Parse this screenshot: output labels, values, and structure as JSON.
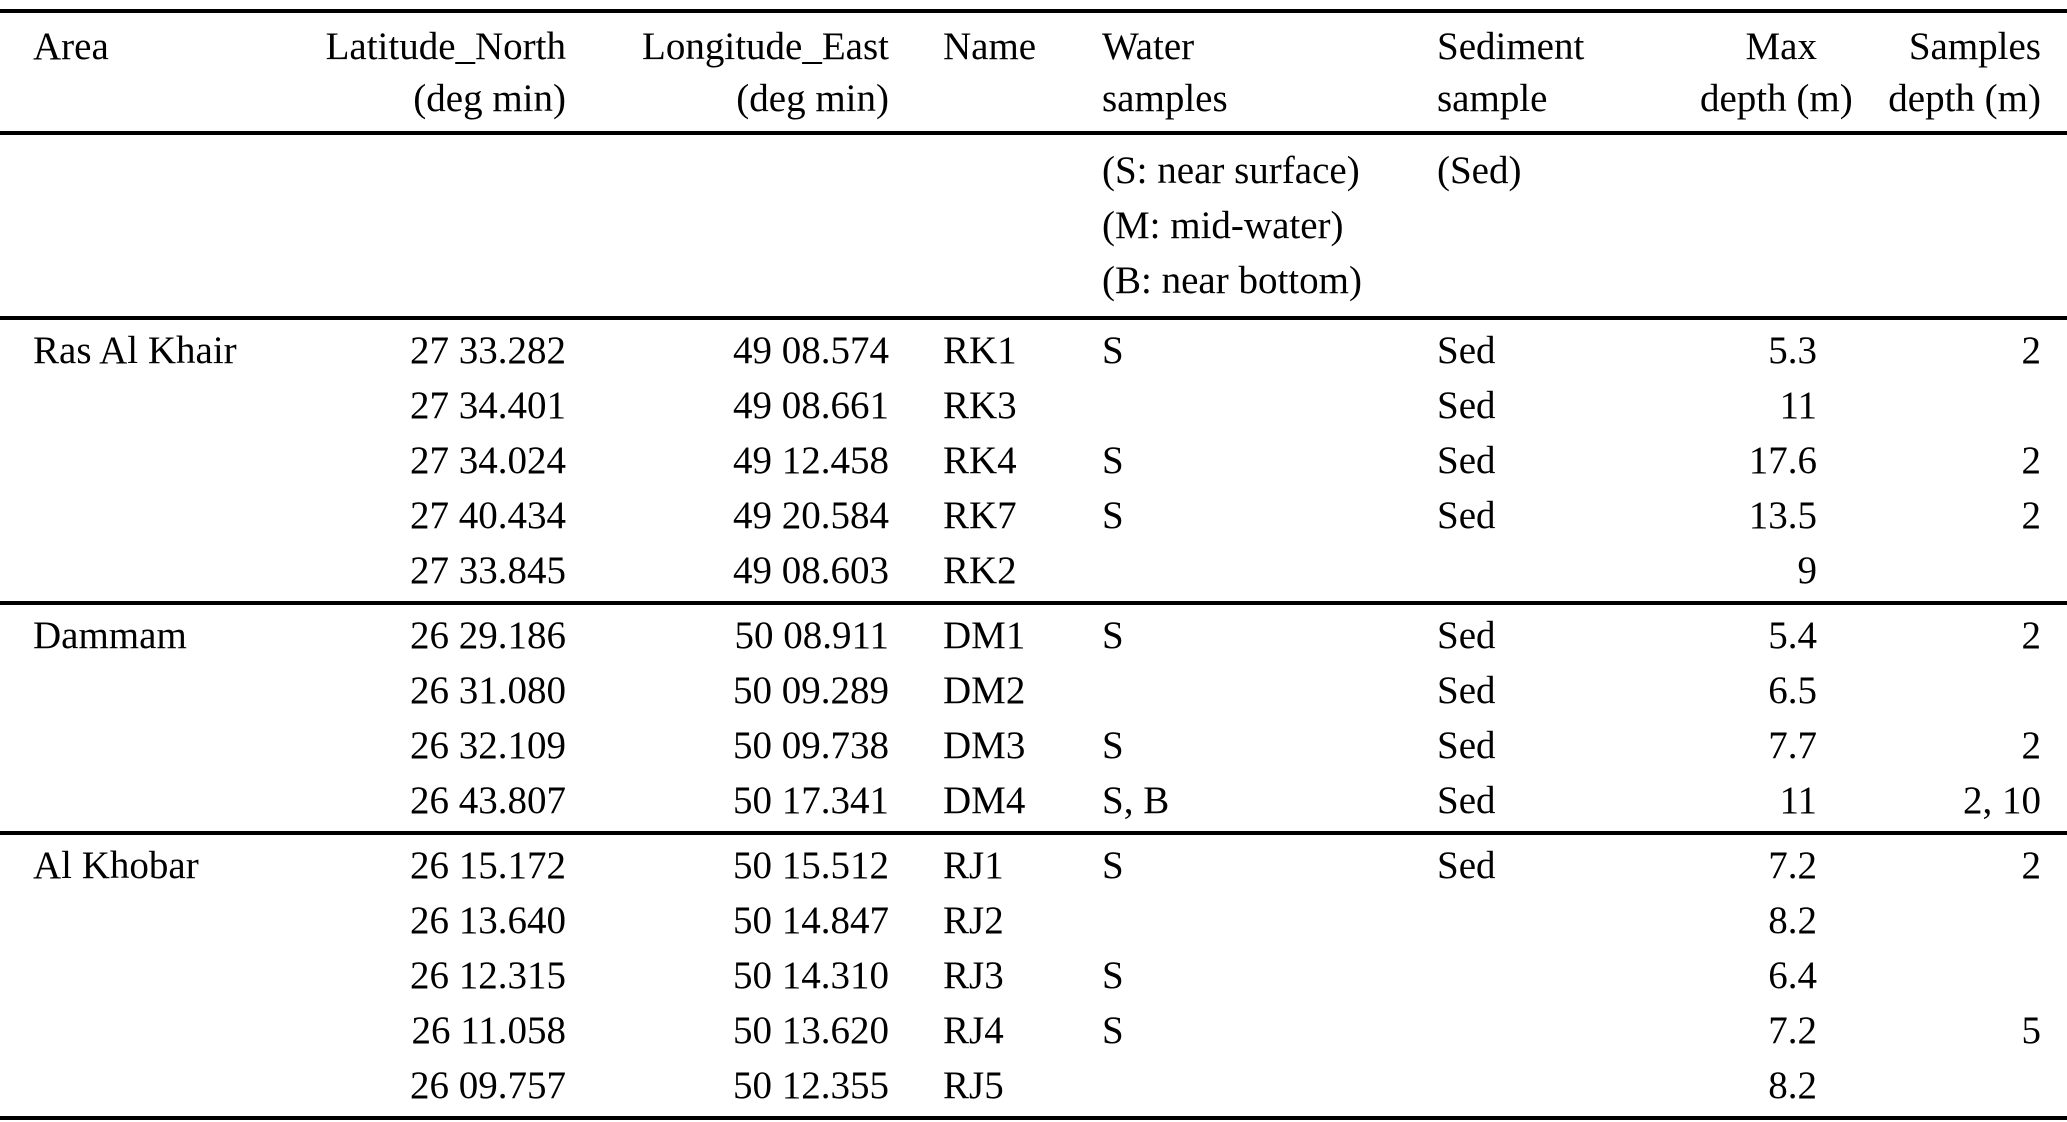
{
  "page": {
    "background": "#ffffff",
    "text_color": "#000000",
    "rule_color": "#000000"
  },
  "table": {
    "columns": [
      {
        "line1": "Area",
        "line2": ""
      },
      {
        "line1": "Latitude_North",
        "line2": "(deg min)"
      },
      {
        "line1": "Longitude_East",
        "line2": "(deg min)"
      },
      {
        "line1": "Name",
        "line2": ""
      },
      {
        "line1": "Water",
        "line2": "samples"
      },
      {
        "line1": "Sediment",
        "line2": "sample"
      },
      {
        "line1": "Max",
        "line2": "depth (m)"
      },
      {
        "line1": "Samples",
        "line2": "depth (m)"
      }
    ],
    "legend": {
      "water": [
        "(S: near surface)",
        "(M: mid-water)",
        "(B: near bottom)"
      ],
      "sediment": "(Sed)"
    },
    "groups": [
      {
        "area": "Ras Al Khair",
        "rows": [
          {
            "lat": "27 33.282",
            "lon": "49 08.574",
            "name": "RK1",
            "water": "S",
            "sediment": "Sed",
            "max_depth": "5.3",
            "samples_depth": "2"
          },
          {
            "lat": "27 34.401",
            "lon": "49 08.661",
            "name": "RK3",
            "water": "",
            "sediment": "Sed",
            "max_depth": "11",
            "samples_depth": ""
          },
          {
            "lat": "27 34.024",
            "lon": "49 12.458",
            "name": "RK4",
            "water": "S",
            "sediment": "Sed",
            "max_depth": "17.6",
            "samples_depth": "2"
          },
          {
            "lat": "27 40.434",
            "lon": "49 20.584",
            "name": "RK7",
            "water": "S",
            "sediment": "Sed",
            "max_depth": "13.5",
            "samples_depth": "2"
          },
          {
            "lat": "27 33.845",
            "lon": "49 08.603",
            "name": "RK2",
            "water": "",
            "sediment": "",
            "max_depth": "9",
            "samples_depth": ""
          }
        ]
      },
      {
        "area": "Dammam",
        "rows": [
          {
            "lat": "26 29.186",
            "lon": "50 08.911",
            "name": "DM1",
            "water": "S",
            "sediment": "Sed",
            "max_depth": "5.4",
            "samples_depth": "2"
          },
          {
            "lat": "26 31.080",
            "lon": "50 09.289",
            "name": "DM2",
            "water": "",
            "sediment": "Sed",
            "max_depth": "6.5",
            "samples_depth": ""
          },
          {
            "lat": "26 32.109",
            "lon": "50 09.738",
            "name": "DM3",
            "water": "S",
            "sediment": "Sed",
            "max_depth": "7.7",
            "samples_depth": "2"
          },
          {
            "lat": "26 43.807",
            "lon": "50 17.341",
            "name": "DM4",
            "water": "S, B",
            "sediment": "Sed",
            "max_depth": "11",
            "samples_depth": "2, 10"
          }
        ]
      },
      {
        "area": "Al Khobar",
        "rows": [
          {
            "lat": "26 15.172",
            "lon": "50 15.512",
            "name": "RJ1",
            "water": "S",
            "sediment": "Sed",
            "max_depth": "7.2",
            "samples_depth": "2"
          },
          {
            "lat": "26 13.640",
            "lon": "50 14.847",
            "name": "RJ2",
            "water": "",
            "sediment": "",
            "max_depth": "8.2",
            "samples_depth": ""
          },
          {
            "lat": "26 12.315",
            "lon": "50 14.310",
            "name": "RJ3",
            "water": "S",
            "sediment": "",
            "max_depth": "6.4",
            "samples_depth": ""
          },
          {
            "lat": "26 11.058",
            "lon": "50 13.620",
            "name": "RJ4",
            "water": "S",
            "sediment": "",
            "max_depth": "7.2",
            "samples_depth": "5"
          },
          {
            "lat": "26 09.757",
            "lon": "50 12.355",
            "name": "RJ5",
            "water": "",
            "sediment": "",
            "max_depth": "8.2",
            "samples_depth": ""
          }
        ]
      }
    ]
  }
}
